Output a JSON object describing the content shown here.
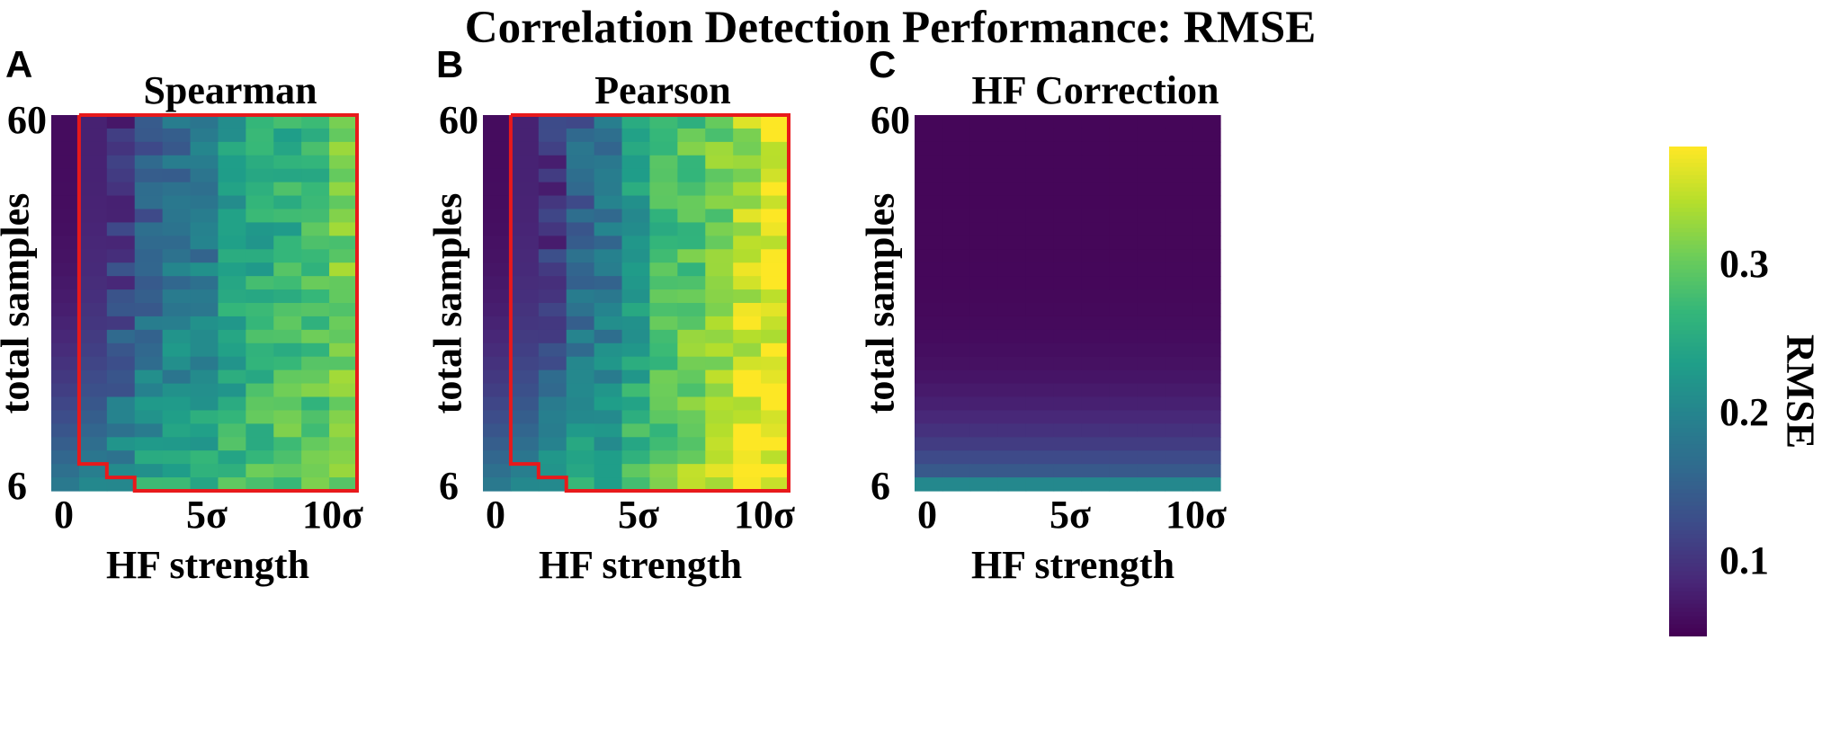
{
  "chart_data": {
    "type": "heatmap",
    "title": "Correlation Detection Performance: RMSE",
    "x_label": "HF strength",
    "y_label": "total samples",
    "x_tick_labels": [
      "0",
      "5σ",
      "10σ"
    ],
    "x_tick_values": [
      0,
      5,
      10
    ],
    "y_tick_labels": [
      "6",
      "60"
    ],
    "y_tick_values": [
      6,
      60
    ],
    "n_cols": 11,
    "n_rows": 28,
    "colorbar": {
      "label": "RMSE",
      "range": [
        0.05,
        0.37
      ],
      "ticks": [
        "0.1",
        "0.2",
        "0.3"
      ],
      "tick_values": [
        0.1,
        0.2,
        0.3
      ],
      "colormap": "viridis"
    },
    "panels": [
      {
        "letter": "A",
        "title": "Spearman",
        "outline_color": "#e8191b",
        "column_base": [
          0.055,
          0.082,
          0.11,
          0.165,
          0.185,
          0.2,
          0.215,
          0.235,
          0.255,
          0.275,
          0.29
        ],
        "top_row_rmse": [
          0.06,
          0.08,
          0.09,
          0.14,
          0.16,
          0.17,
          0.22,
          0.24,
          0.25,
          0.27,
          0.3
        ],
        "bottom_row_rmse": [
          0.18,
          0.2,
          0.22,
          0.24,
          0.25,
          0.26,
          0.27,
          0.28,
          0.29,
          0.3,
          0.3
        ]
      },
      {
        "letter": "B",
        "title": "Pearson",
        "outline_color": "#e8191b",
        "column_base": [
          0.055,
          0.082,
          0.11,
          0.165,
          0.185,
          0.205,
          0.235,
          0.265,
          0.295,
          0.315,
          0.33
        ],
        "top_row_rmse": [
          0.06,
          0.08,
          0.09,
          0.14,
          0.16,
          0.22,
          0.27,
          0.28,
          0.3,
          0.33,
          0.36
        ],
        "bottom_row_rmse": [
          0.18,
          0.2,
          0.22,
          0.24,
          0.25,
          0.27,
          0.29,
          0.32,
          0.35,
          0.37,
          0.36
        ]
      },
      {
        "letter": "C",
        "title": "HF Correction",
        "top_row_rmse": 0.055,
        "second_row_rmse": 0.16,
        "bottom_row_rmse": 0.2
      }
    ]
  }
}
